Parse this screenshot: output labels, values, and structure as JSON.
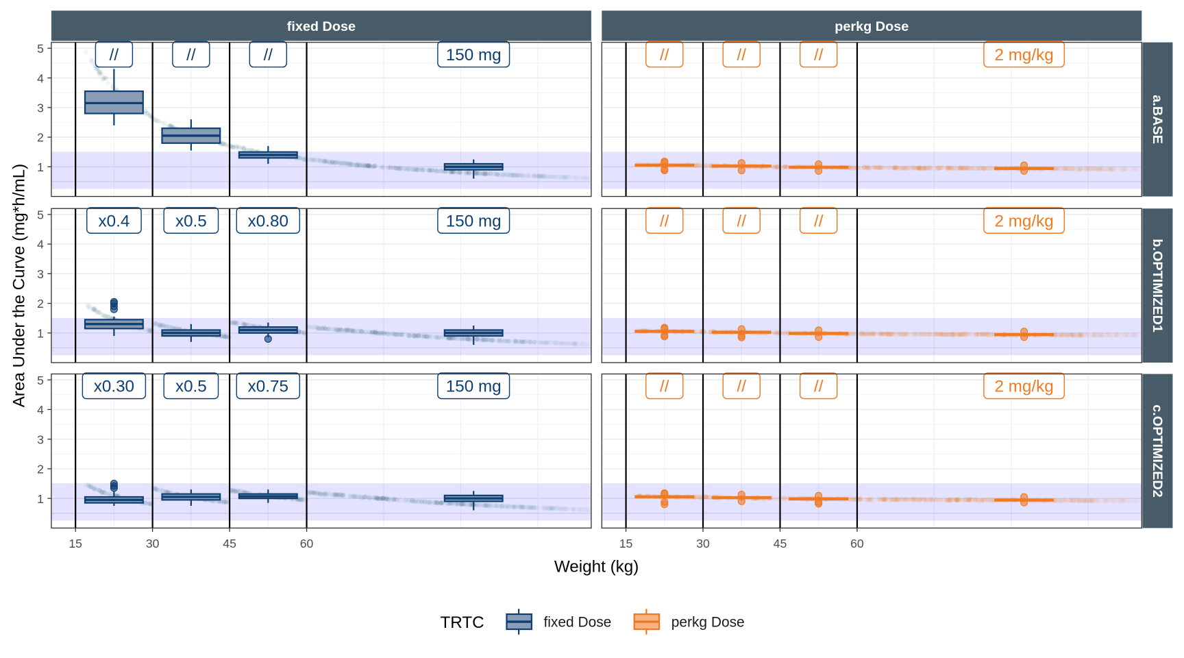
{
  "chart_data": {
    "type": "boxplot",
    "xlabel": "Weight (kg)",
    "ylabel": "Area Under the Curve (mg*h/mL)",
    "xticks": [
      15,
      30,
      45,
      60
    ],
    "yticks": [
      1,
      2,
      3,
      4,
      5
    ],
    "xlim": [
      10.3,
      115.4
    ],
    "ylim": [
      0,
      5.2
    ],
    "grid": true,
    "weight_cutoffs": [
      15,
      30,
      45,
      60
    ],
    "target_band": [
      0.25,
      1.5
    ],
    "reference_line": 0.5,
    "facet_cols": [
      "fixed Dose",
      "perkg Dose"
    ],
    "facet_rows": [
      "a.BASE",
      "b.OPTIMIZED1",
      "c.OPTIMIZED2"
    ],
    "colors": {
      "fixed Dose": "#0E3F73",
      "perkg Dose": "#F07A22",
      "fixed_fill": "#8A9DB6",
      "perkg_fill": "#F6B283",
      "fixed_points": "#2E6E78",
      "strip": "#475B69",
      "band": "#E2E2FA"
    },
    "legend": {
      "title": "TRTC",
      "placement": "bottom",
      "entries": [
        "fixed Dose",
        "perkg Dose"
      ]
    },
    "panels": [
      {
        "row": 0,
        "col": 0,
        "labels": [
          {
            "x": 22.5,
            "text": "//"
          },
          {
            "x": 37.5,
            "text": "//"
          },
          {
            "x": 52.5,
            "text": "//"
          },
          {
            "x": 92.5,
            "text": "150 mg"
          }
        ],
        "boxes": [
          {
            "x": 22.5,
            "lo": 2.4,
            "q1": 2.8,
            "med": 3.15,
            "q3": 3.55,
            "hi": 4.3,
            "outliers": []
          },
          {
            "x": 37.5,
            "lo": 1.55,
            "q1": 1.8,
            "med": 2.05,
            "q3": 2.3,
            "hi": 2.6,
            "outliers": []
          },
          {
            "x": 52.5,
            "lo": 1.1,
            "q1": 1.3,
            "med": 1.4,
            "q3": 1.5,
            "hi": 1.7,
            "outliers": []
          },
          {
            "x": 92.5,
            "lo": 0.6,
            "q1": 0.9,
            "med": 1.0,
            "q3": 1.1,
            "hi": 1.25,
            "outliers": []
          }
        ],
        "trend": [
          {
            "w": [
              17,
              20,
              25,
              30,
              35,
              40,
              45,
              50,
              55,
              60,
              70,
              80,
              90,
              100,
              110,
              115
            ],
            "auc": [
              4.89,
              4.1,
              3.22,
              2.65,
              2.24,
              1.94,
              1.71,
              1.52,
              1.38,
              1.25,
              1.06,
              0.92,
              0.81,
              0.72,
              0.65,
              0.62
            ]
          }
        ]
      },
      {
        "row": 0,
        "col": 1,
        "labels": [
          {
            "x": 22.5,
            "text": "//"
          },
          {
            "x": 37.5,
            "text": "//"
          },
          {
            "x": 52.5,
            "text": "//"
          },
          {
            "x": 92.5,
            "text": "2 mg/kg"
          }
        ],
        "boxes": [
          {
            "x": 22.5,
            "lo": 0.95,
            "q1": 1.03,
            "med": 1.05,
            "q3": 1.08,
            "hi": 1.12,
            "outliers": [
              0.88,
              0.92,
              1.15,
              1.18
            ]
          },
          {
            "x": 37.5,
            "lo": 0.93,
            "q1": 1.0,
            "med": 1.02,
            "q3": 1.05,
            "hi": 1.1,
            "outliers": [
              0.88,
              1.13
            ]
          },
          {
            "x": 52.5,
            "lo": 0.9,
            "q1": 0.96,
            "med": 0.98,
            "q3": 1.01,
            "hi": 1.06,
            "outliers": [
              0.86,
              1.09
            ]
          },
          {
            "x": 92.5,
            "lo": 0.88,
            "q1": 0.93,
            "med": 0.95,
            "q3": 0.97,
            "hi": 1.02,
            "outliers": [
              0.86,
              1.05
            ]
          }
        ],
        "trend": [
          {
            "w": [
              17,
              30,
              45,
              60,
              80,
              100,
              115
            ],
            "auc": [
              1.07,
              1.04,
              1.0,
              0.97,
              0.95,
              0.93,
              0.92
            ]
          }
        ]
      },
      {
        "row": 1,
        "col": 0,
        "labels": [
          {
            "x": 22.5,
            "text": "x0.4"
          },
          {
            "x": 37.5,
            "text": "x0.5"
          },
          {
            "x": 52.5,
            "text": "x0.80"
          },
          {
            "x": 92.5,
            "text": "150 mg"
          }
        ],
        "boxes": [
          {
            "x": 22.5,
            "lo": 0.9,
            "q1": 1.15,
            "med": 1.3,
            "q3": 1.45,
            "hi": 1.55,
            "outliers": [
              1.8,
              1.9,
              2.0,
              2.05
            ]
          },
          {
            "x": 37.5,
            "lo": 0.7,
            "q1": 0.9,
            "med": 1.0,
            "q3": 1.1,
            "hi": 1.3,
            "outliers": []
          },
          {
            "x": 52.5,
            "lo": 0.85,
            "q1": 1.0,
            "med": 1.1,
            "q3": 1.2,
            "hi": 1.35,
            "outliers": [
              0.8
            ]
          },
          {
            "x": 92.5,
            "lo": 0.6,
            "q1": 0.9,
            "med": 1.0,
            "q3": 1.1,
            "hi": 1.25,
            "outliers": []
          }
        ],
        "trend": [
          {
            "w": [
              17,
              20,
              25,
              30
            ],
            "auc": [
              1.96,
              1.64,
              1.29,
              1.06
            ]
          },
          {
            "w": [
              30,
              35,
              40,
              45
            ],
            "auc": [
              1.33,
              1.12,
              0.97,
              0.86
            ]
          },
          {
            "w": [
              45,
              50,
              55,
              60
            ],
            "auc": [
              1.37,
              1.22,
              1.1,
              1.0
            ]
          },
          {
            "w": [
              60,
              70,
              80,
              90,
              100,
              110,
              115
            ],
            "auc": [
              1.2,
              1.06,
              0.92,
              0.81,
              0.72,
              0.65,
              0.62
            ]
          }
        ]
      },
      {
        "row": 1,
        "col": 1,
        "labels": [
          {
            "x": 22.5,
            "text": "//"
          },
          {
            "x": 37.5,
            "text": "//"
          },
          {
            "x": 52.5,
            "text": "//"
          },
          {
            "x": 92.5,
            "text": "2 mg/kg"
          }
        ],
        "boxes": [
          {
            "x": 22.5,
            "lo": 0.95,
            "q1": 1.03,
            "med": 1.05,
            "q3": 1.08,
            "hi": 1.12,
            "outliers": [
              0.88,
              0.92,
              1.15,
              1.18
            ]
          },
          {
            "x": 37.5,
            "lo": 0.93,
            "q1": 1.0,
            "med": 1.02,
            "q3": 1.05,
            "hi": 1.1,
            "outliers": [
              0.85,
              0.9,
              1.13
            ]
          },
          {
            "x": 52.5,
            "lo": 0.9,
            "q1": 0.96,
            "med": 0.98,
            "q3": 1.01,
            "hi": 1.06,
            "outliers": [
              0.86,
              1.09
            ]
          },
          {
            "x": 92.5,
            "lo": 0.88,
            "q1": 0.93,
            "med": 0.95,
            "q3": 0.97,
            "hi": 1.02,
            "outliers": [
              0.86,
              1.05
            ]
          }
        ],
        "trend": [
          {
            "w": [
              17,
              30,
              45,
              60,
              80,
              100,
              115
            ],
            "auc": [
              1.07,
              1.04,
              1.0,
              0.97,
              0.95,
              0.93,
              0.92
            ]
          }
        ]
      },
      {
        "row": 2,
        "col": 0,
        "labels": [
          {
            "x": 22.5,
            "text": "x0.30"
          },
          {
            "x": 37.5,
            "text": "x0.5"
          },
          {
            "x": 52.5,
            "text": "x0.75"
          },
          {
            "x": 92.5,
            "text": "150 mg"
          }
        ],
        "boxes": [
          {
            "x": 22.5,
            "lo": 0.75,
            "q1": 0.85,
            "med": 0.95,
            "q3": 1.05,
            "hi": 1.25,
            "outliers": [
              1.35,
              1.42,
              1.5
            ]
          },
          {
            "x": 37.5,
            "lo": 0.75,
            "q1": 0.95,
            "med": 1.05,
            "q3": 1.15,
            "hi": 1.3,
            "outliers": []
          },
          {
            "x": 52.5,
            "lo": 0.85,
            "q1": 1.0,
            "med": 1.07,
            "q3": 1.15,
            "hi": 1.3,
            "outliers": []
          },
          {
            "x": 92.5,
            "lo": 0.6,
            "q1": 0.9,
            "med": 1.0,
            "q3": 1.1,
            "hi": 1.25,
            "outliers": []
          }
        ],
        "trend": [
          {
            "w": [
              17,
              20,
              25,
              30
            ],
            "auc": [
              1.47,
              1.23,
              0.97,
              0.8
            ]
          },
          {
            "w": [
              30,
              35,
              40,
              45
            ],
            "auc": [
              1.33,
              1.12,
              0.97,
              0.86
            ]
          },
          {
            "w": [
              45,
              50,
              55,
              60
            ],
            "auc": [
              1.28,
              1.14,
              1.03,
              0.94
            ]
          },
          {
            "w": [
              60,
              70,
              80,
              90,
              100,
              110,
              115
            ],
            "auc": [
              1.2,
              1.06,
              0.92,
              0.81,
              0.72,
              0.65,
              0.62
            ]
          }
        ]
      },
      {
        "row": 2,
        "col": 1,
        "labels": [
          {
            "x": 22.5,
            "text": "//"
          },
          {
            "x": 37.5,
            "text": "//"
          },
          {
            "x": 52.5,
            "text": "//"
          },
          {
            "x": 92.5,
            "text": "2 mg/kg"
          }
        ],
        "boxes": [
          {
            "x": 22.5,
            "lo": 0.95,
            "q1": 1.03,
            "med": 1.05,
            "q3": 1.08,
            "hi": 1.12,
            "outliers": [
              0.8,
              0.88,
              1.15,
              1.18
            ]
          },
          {
            "x": 37.5,
            "lo": 0.93,
            "q1": 1.0,
            "med": 1.02,
            "q3": 1.05,
            "hi": 1.1,
            "outliers": [
              0.9,
              1.13
            ]
          },
          {
            "x": 52.5,
            "lo": 0.9,
            "q1": 0.96,
            "med": 0.98,
            "q3": 1.01,
            "hi": 1.06,
            "outliers": [
              0.82,
              0.88,
              1.09
            ]
          },
          {
            "x": 92.5,
            "lo": 0.88,
            "q1": 0.93,
            "med": 0.95,
            "q3": 0.97,
            "hi": 1.02,
            "outliers": [
              0.86,
              1.05
            ]
          }
        ],
        "trend": [
          {
            "w": [
              17,
              30,
              45,
              60,
              80,
              100,
              115
            ],
            "auc": [
              1.07,
              1.04,
              1.0,
              0.97,
              0.95,
              0.93,
              0.92
            ]
          }
        ]
      }
    ]
  }
}
